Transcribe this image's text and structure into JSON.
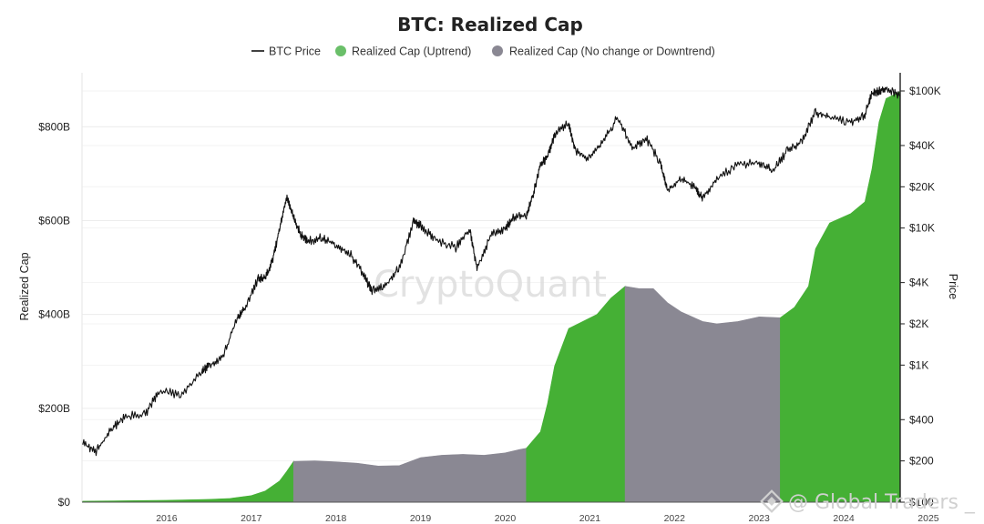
{
  "chart_data": {
    "type": "area",
    "title": "BTC: Realized Cap",
    "legend": {
      "placement": "top-center",
      "entries": [
        {
          "name": "BTC Price",
          "marker": "line",
          "color": "#111111"
        },
        {
          "name": "Realized Cap (Uptrend)",
          "marker": "dot",
          "color": "#6abf69"
        },
        {
          "name": "Realized Cap (No change or Downtrend)",
          "marker": "dot",
          "color": "#8a8893"
        }
      ]
    },
    "left_axis": {
      "title": "Realized Cap",
      "ticks": [
        {
          "value": 0,
          "label": "$0"
        },
        {
          "value": 200,
          "label": "$200B"
        },
        {
          "value": 400,
          "label": "$400B"
        },
        {
          "value": 600,
          "label": "$600B"
        },
        {
          "value": 800,
          "label": "$800B"
        }
      ],
      "unit": "billion USD",
      "range": [
        0,
        915
      ]
    },
    "right_axis": {
      "title": "Price",
      "scale": "log",
      "ticks": [
        {
          "value": 100,
          "label": "$100"
        },
        {
          "value": 200,
          "label": "$200"
        },
        {
          "value": 400,
          "label": "$400"
        },
        {
          "value": 1000,
          "label": "$1K"
        },
        {
          "value": 2000,
          "label": "$2K"
        },
        {
          "value": 4000,
          "label": "$4K"
        },
        {
          "value": 10000,
          "label": "$10K"
        },
        {
          "value": 20000,
          "label": "$20K"
        },
        {
          "value": 40000,
          "label": "$40K"
        },
        {
          "value": 100000,
          "label": "$100K"
        }
      ]
    },
    "x_axis": {
      "ticks": [
        "2016",
        "2017",
        "2018",
        "2019",
        "2020",
        "2021",
        "2022",
        "2023",
        "2024",
        "2025"
      ],
      "range": [
        "2015-07",
        "2025-03"
      ]
    },
    "grid": "horizontal",
    "colors": {
      "uptrend": "#45b035",
      "downtrend": "#8a8893",
      "price": "#111111"
    },
    "realized_cap": [
      {
        "date": "2015-07",
        "value": 2
      },
      {
        "date": "2016-01",
        "value": 3
      },
      {
        "date": "2016-07",
        "value": 4
      },
      {
        "date": "2017-01",
        "value": 6
      },
      {
        "date": "2017-04",
        "value": 8
      },
      {
        "date": "2017-07",
        "value": 14
      },
      {
        "date": "2017-09",
        "value": 24
      },
      {
        "date": "2017-11",
        "value": 45
      },
      {
        "date": "2017-12",
        "value": 65
      },
      {
        "date": "2018-01",
        "value": 87
      },
      {
        "date": "2018-04",
        "value": 88
      },
      {
        "date": "2018-07",
        "value": 86
      },
      {
        "date": "2018-10",
        "value": 83
      },
      {
        "date": "2019-01",
        "value": 77
      },
      {
        "date": "2019-04",
        "value": 78
      },
      {
        "date": "2019-07",
        "value": 95
      },
      {
        "date": "2019-10",
        "value": 100
      },
      {
        "date": "2020-01",
        "value": 102
      },
      {
        "date": "2020-04",
        "value": 100
      },
      {
        "date": "2020-07",
        "value": 105
      },
      {
        "date": "2020-09",
        "value": 112
      },
      {
        "date": "2020-10",
        "value": 115
      },
      {
        "date": "2020-12",
        "value": 150
      },
      {
        "date": "2021-01",
        "value": 210
      },
      {
        "date": "2021-02",
        "value": 290
      },
      {
        "date": "2021-04",
        "value": 370
      },
      {
        "date": "2021-06",
        "value": 385
      },
      {
        "date": "2021-08",
        "value": 400
      },
      {
        "date": "2021-10",
        "value": 435
      },
      {
        "date": "2021-12",
        "value": 460
      },
      {
        "date": "2022-02",
        "value": 455
      },
      {
        "date": "2022-04",
        "value": 455
      },
      {
        "date": "2022-06",
        "value": 425
      },
      {
        "date": "2022-08",
        "value": 405
      },
      {
        "date": "2022-11",
        "value": 385
      },
      {
        "date": "2023-01",
        "value": 380
      },
      {
        "date": "2023-04",
        "value": 385
      },
      {
        "date": "2023-07",
        "value": 395
      },
      {
        "date": "2023-10",
        "value": 393
      },
      {
        "date": "2023-12",
        "value": 415
      },
      {
        "date": "2024-02",
        "value": 460
      },
      {
        "date": "2024-03",
        "value": 540
      },
      {
        "date": "2024-05",
        "value": 595
      },
      {
        "date": "2024-08",
        "value": 615
      },
      {
        "date": "2024-10",
        "value": 640
      },
      {
        "date": "2024-11",
        "value": 710
      },
      {
        "date": "2024-12",
        "value": 810
      },
      {
        "date": "2025-01",
        "value": 860
      },
      {
        "date": "2025-03",
        "value": 875
      }
    ],
    "trend_segments": [
      {
        "from": "2015-07",
        "to": "2018-01",
        "trend": "Uptrend"
      },
      {
        "from": "2018-01",
        "to": "2020-10",
        "trend": "No change or Downtrend"
      },
      {
        "from": "2020-10",
        "to": "2021-12",
        "trend": "Uptrend"
      },
      {
        "from": "2021-12",
        "to": "2023-10",
        "trend": "No change or Downtrend"
      },
      {
        "from": "2023-10",
        "to": "2025-03",
        "trend": "Uptrend"
      }
    ],
    "btc_price": [
      {
        "date": "2015-07",
        "value": 270
      },
      {
        "date": "2015-09",
        "value": 235
      },
      {
        "date": "2015-11",
        "value": 330
      },
      {
        "date": "2016-01",
        "value": 420
      },
      {
        "date": "2016-04",
        "value": 440
      },
      {
        "date": "2016-06",
        "value": 650
      },
      {
        "date": "2016-09",
        "value": 610
      },
      {
        "date": "2016-12",
        "value": 900
      },
      {
        "date": "2017-01",
        "value": 980
      },
      {
        "date": "2017-03",
        "value": 1150
      },
      {
        "date": "2017-05",
        "value": 2200
      },
      {
        "date": "2017-06",
        "value": 2550
      },
      {
        "date": "2017-08",
        "value": 4300
      },
      {
        "date": "2017-09",
        "value": 4300
      },
      {
        "date": "2017-10",
        "value": 5800
      },
      {
        "date": "2017-11",
        "value": 9800
      },
      {
        "date": "2017-12",
        "value": 17000
      },
      {
        "date": "2018-01",
        "value": 12000
      },
      {
        "date": "2018-02",
        "value": 9000
      },
      {
        "date": "2018-03",
        "value": 8000
      },
      {
        "date": "2018-05",
        "value": 8500
      },
      {
        "date": "2018-07",
        "value": 7500
      },
      {
        "date": "2018-09",
        "value": 6500
      },
      {
        "date": "2018-11",
        "value": 4500
      },
      {
        "date": "2018-12",
        "value": 3500
      },
      {
        "date": "2019-02",
        "value": 3800
      },
      {
        "date": "2019-04",
        "value": 5200
      },
      {
        "date": "2019-06",
        "value": 11000
      },
      {
        "date": "2019-07",
        "value": 10500
      },
      {
        "date": "2019-09",
        "value": 8300
      },
      {
        "date": "2019-12",
        "value": 7200
      },
      {
        "date": "2020-02",
        "value": 9800
      },
      {
        "date": "2020-03",
        "value": 5000
      },
      {
        "date": "2020-05",
        "value": 9000
      },
      {
        "date": "2020-07",
        "value": 9800
      },
      {
        "date": "2020-08",
        "value": 11800
      },
      {
        "date": "2020-10",
        "value": 12500
      },
      {
        "date": "2020-11",
        "value": 18000
      },
      {
        "date": "2020-12",
        "value": 29000
      },
      {
        "date": "2021-01",
        "value": 33000
      },
      {
        "date": "2021-02",
        "value": 48000
      },
      {
        "date": "2021-04",
        "value": 58000
      },
      {
        "date": "2021-05",
        "value": 36000
      },
      {
        "date": "2021-07",
        "value": 32000
      },
      {
        "date": "2021-09",
        "value": 44000
      },
      {
        "date": "2021-11",
        "value": 65000
      },
      {
        "date": "2022-01",
        "value": 38000
      },
      {
        "date": "2022-03",
        "value": 45000
      },
      {
        "date": "2022-05",
        "value": 30000
      },
      {
        "date": "2022-06",
        "value": 19000
      },
      {
        "date": "2022-08",
        "value": 23000
      },
      {
        "date": "2022-10",
        "value": 19500
      },
      {
        "date": "2022-11",
        "value": 16500
      },
      {
        "date": "2023-01",
        "value": 23000
      },
      {
        "date": "2023-04",
        "value": 29000
      },
      {
        "date": "2023-07",
        "value": 30000
      },
      {
        "date": "2023-09",
        "value": 26000
      },
      {
        "date": "2023-11",
        "value": 37000
      },
      {
        "date": "2024-01",
        "value": 42000
      },
      {
        "date": "2024-03",
        "value": 70000
      },
      {
        "date": "2024-05",
        "value": 65000
      },
      {
        "date": "2024-08",
        "value": 59000
      },
      {
        "date": "2024-10",
        "value": 67000
      },
      {
        "date": "2024-11",
        "value": 96000
      },
      {
        "date": "2024-12",
        "value": 100000
      },
      {
        "date": "2025-01",
        "value": 105000
      },
      {
        "date": "2025-03",
        "value": 92000
      }
    ]
  },
  "watermark": "CryptoQuant",
  "credit": "@ Global Traders _"
}
